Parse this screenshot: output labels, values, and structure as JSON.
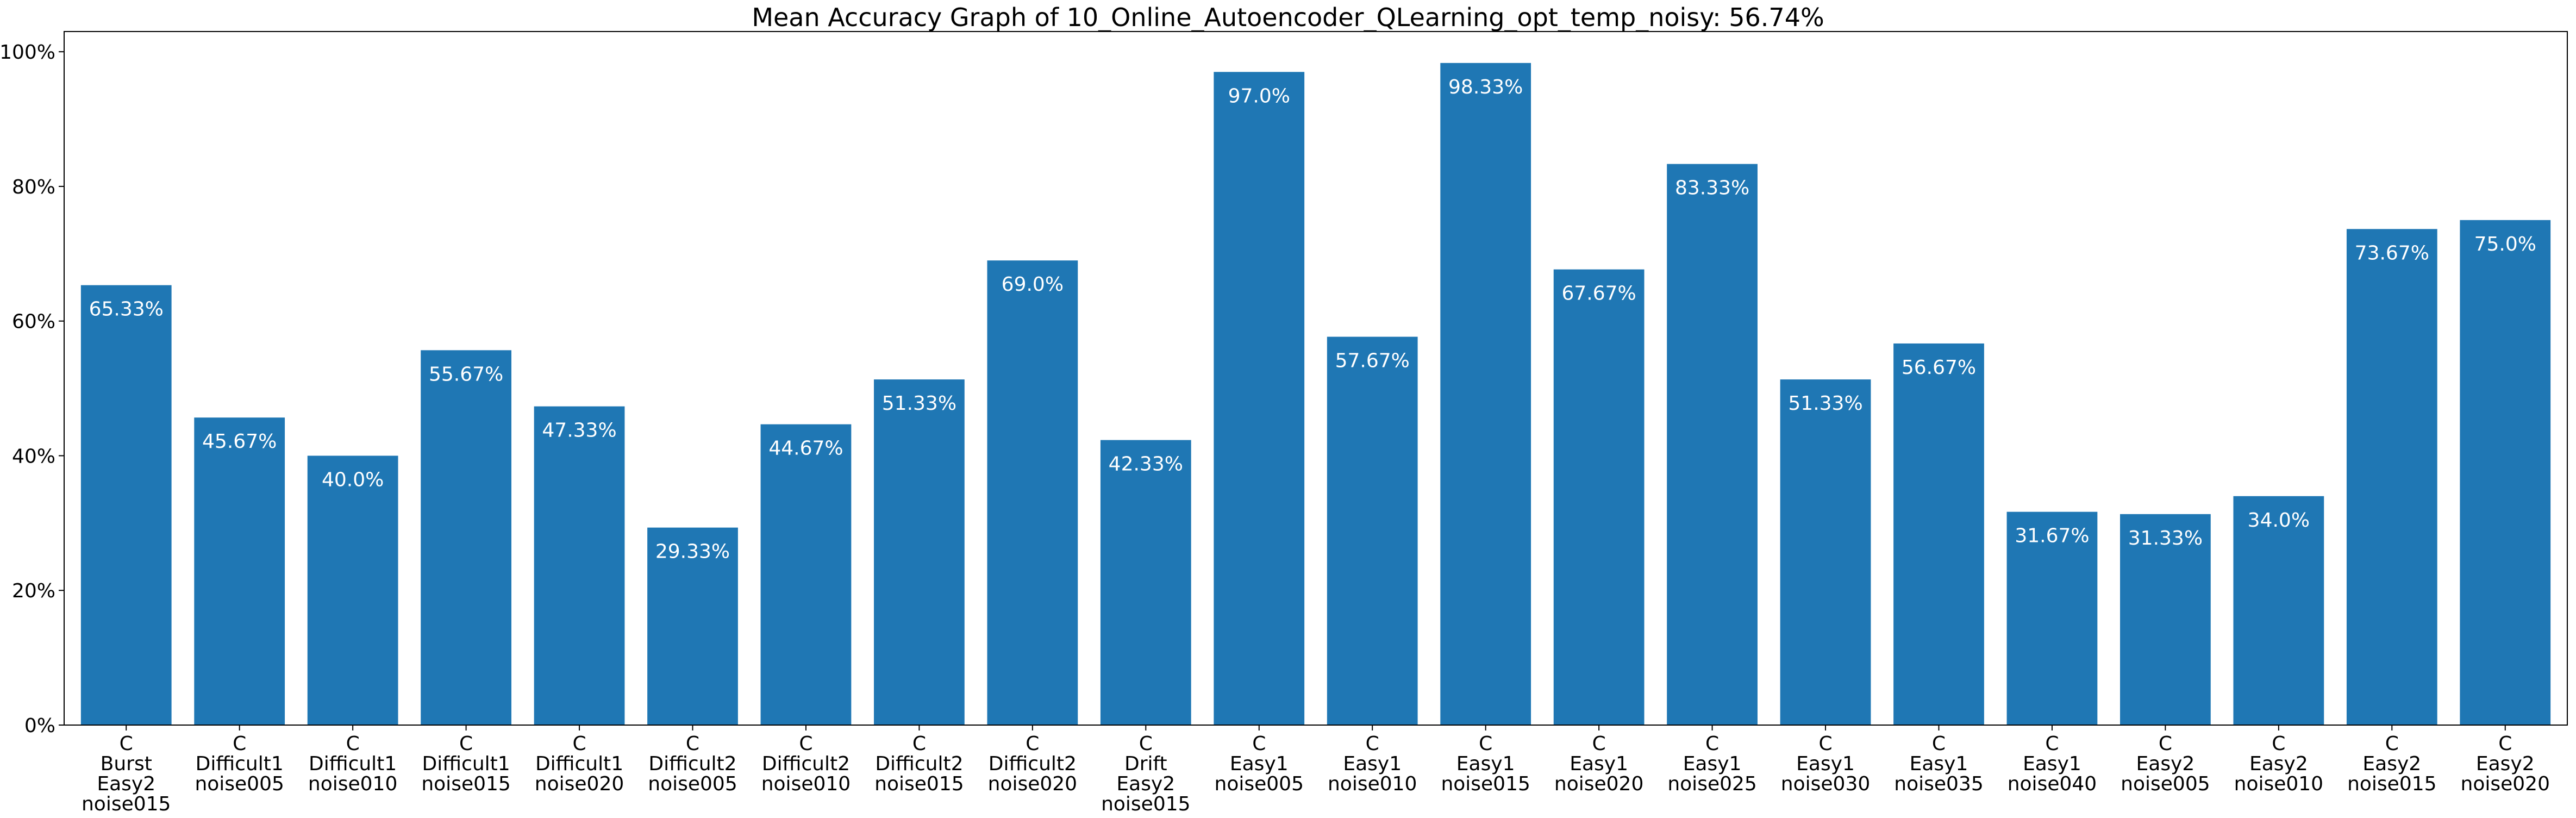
{
  "chart_data": {
    "type": "bar",
    "title": "Mean Accuracy Graph of 10_Online_Autoencoder_QLearning_opt_temp_noisy: 56.74%",
    "xlabel": "",
    "ylabel": "",
    "ylim": [
      0,
      103
    ],
    "yticks": [
      0,
      20,
      40,
      60,
      80,
      100
    ],
    "ytick_labels": [
      "0%",
      "20%",
      "40%",
      "60%",
      "80%",
      "100%"
    ],
    "bar_color": "#1f77b4",
    "label_color": "#ffffff",
    "grid": false,
    "categories": [
      [
        "C",
        "Burst",
        "Easy2",
        "noise015"
      ],
      [
        "C",
        "Difficult1",
        "noise005"
      ],
      [
        "C",
        "Difficult1",
        "noise010"
      ],
      [
        "C",
        "Difficult1",
        "noise015"
      ],
      [
        "C",
        "Difficult1",
        "noise020"
      ],
      [
        "C",
        "Difficult2",
        "noise005"
      ],
      [
        "C",
        "Difficult2",
        "noise010"
      ],
      [
        "C",
        "Difficult2",
        "noise015"
      ],
      [
        "C",
        "Difficult2",
        "noise020"
      ],
      [
        "C",
        "Drift",
        "Easy2",
        "noise015"
      ],
      [
        "C",
        "Easy1",
        "noise005"
      ],
      [
        "C",
        "Easy1",
        "noise010"
      ],
      [
        "C",
        "Easy1",
        "noise015"
      ],
      [
        "C",
        "Easy1",
        "noise020"
      ],
      [
        "C",
        "Easy1",
        "noise025"
      ],
      [
        "C",
        "Easy1",
        "noise030"
      ],
      [
        "C",
        "Easy1",
        "noise035"
      ],
      [
        "C",
        "Easy1",
        "noise040"
      ],
      [
        "C",
        "Easy2",
        "noise005"
      ],
      [
        "C",
        "Easy2",
        "noise010"
      ],
      [
        "C",
        "Easy2",
        "noise015"
      ],
      [
        "C",
        "Easy2",
        "noise020"
      ]
    ],
    "values": [
      65.33,
      45.67,
      40.0,
      55.67,
      47.33,
      29.33,
      44.67,
      51.33,
      69.0,
      42.33,
      97.0,
      57.67,
      98.33,
      67.67,
      83.33,
      51.33,
      56.67,
      31.67,
      31.33,
      34.0,
      73.67,
      75.0
    ],
    "data_labels": [
      "65.33%",
      "45.67%",
      "40.0%",
      "55.67%",
      "47.33%",
      "29.33%",
      "44.67%",
      "51.33%",
      "69.0%",
      "42.33%",
      "97.0%",
      "57.67%",
      "98.33%",
      "67.67%",
      "83.33%",
      "51.33%",
      "56.67%",
      "31.67%",
      "31.33%",
      "34.0%",
      "73.67%",
      "75.0%"
    ]
  }
}
